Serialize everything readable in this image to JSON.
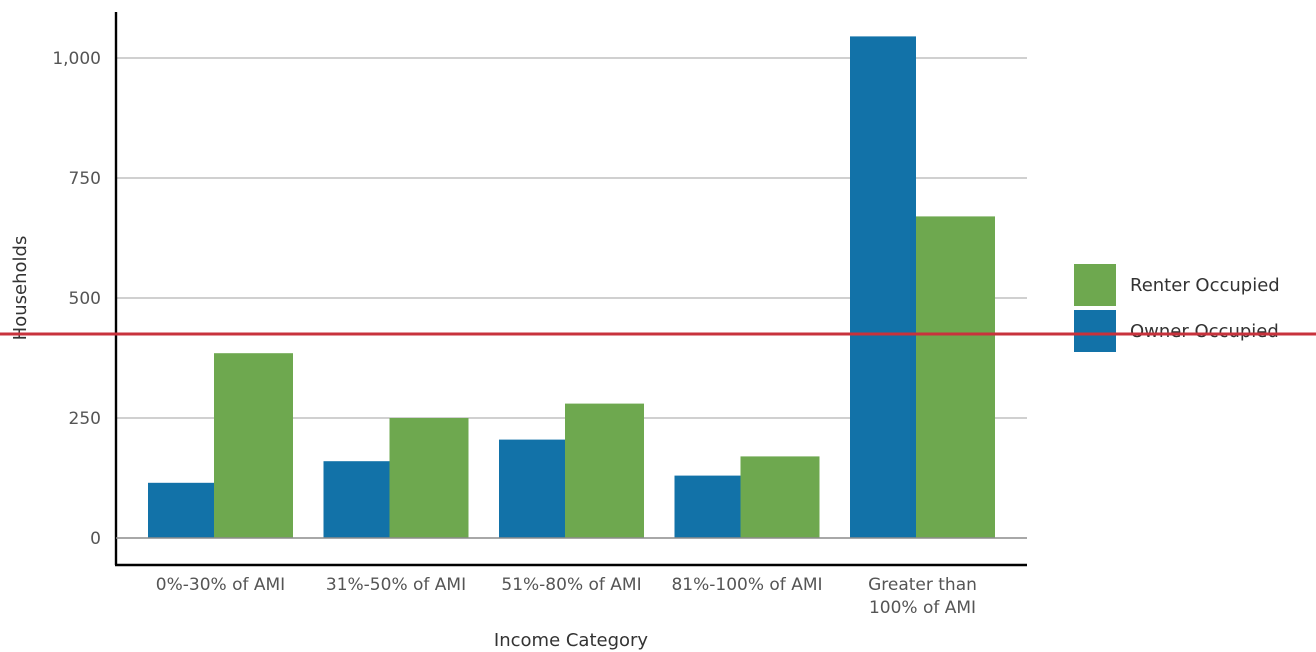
{
  "chart_data": {
    "type": "bar",
    "title": "",
    "xlabel": "Income Category",
    "ylabel": "Households",
    "categories": [
      [
        "0%-30% of AMI"
      ],
      [
        "31%-50% of AMI"
      ],
      [
        "51%-80% of AMI"
      ],
      [
        "81%-100% of AMI"
      ],
      [
        "Greater than",
        "100% of AMI"
      ]
    ],
    "series": [
      {
        "name": "Owner Occupied",
        "color": "#1272a8",
        "values": [
          115,
          160,
          205,
          130,
          1045
        ]
      },
      {
        "name": "Renter Occupied",
        "color": "#6ea84f",
        "values": [
          385,
          250,
          280,
          170,
          670
        ]
      }
    ],
    "ylim": [
      0,
      1000
    ],
    "yticks": [
      0,
      250,
      500,
      750,
      1000
    ],
    "ytick_labels": [
      "0",
      "250",
      "500",
      "750",
      "1,000"
    ],
    "grid": true,
    "legend_position": "right",
    "legend_order": [
      "Renter Occupied",
      "Owner Occupied"
    ],
    "reference_line": {
      "value": 425,
      "color": "#c8323c"
    }
  }
}
